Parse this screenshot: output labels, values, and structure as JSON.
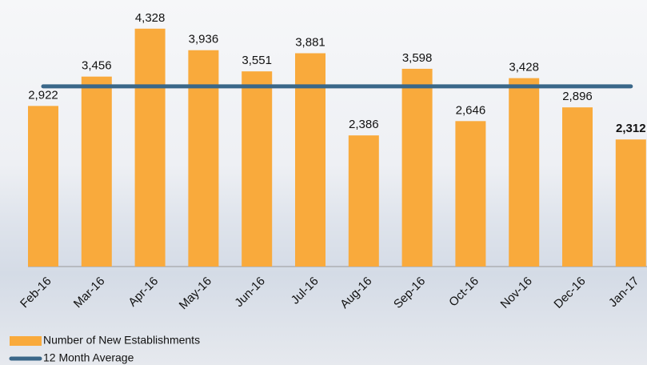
{
  "chart_data": {
    "type": "bar",
    "categories": [
      "Feb-16",
      "Mar-16",
      "Apr-16",
      "May-16",
      "Jun-16",
      "Jul-16",
      "Aug-16",
      "Sep-16",
      "Oct-16",
      "Nov-16",
      "Dec-16",
      "Jan-17"
    ],
    "series": [
      {
        "name": "Number of New Establishments",
        "type": "bar",
        "color": "#f9aa3c",
        "values": [
          2922,
          3456,
          4328,
          3936,
          3551,
          3881,
          2386,
          3598,
          2646,
          3428,
          2896,
          2312
        ],
        "value_labels": [
          "2,922",
          "3,456",
          "4,328",
          "3,936",
          "3,551",
          "3,881",
          "2,386",
          "3,598",
          "2,646",
          "3,428",
          "2,896",
          "2,312"
        ]
      },
      {
        "name": "12 Month Average",
        "type": "line",
        "color": "#3a6789",
        "values": [
          3278,
          3278,
          3278,
          3278,
          3278,
          3278,
          3278,
          3278,
          3278,
          3278,
          3278,
          3278
        ]
      }
    ],
    "ylim": [
      0,
      4500
    ]
  }
}
